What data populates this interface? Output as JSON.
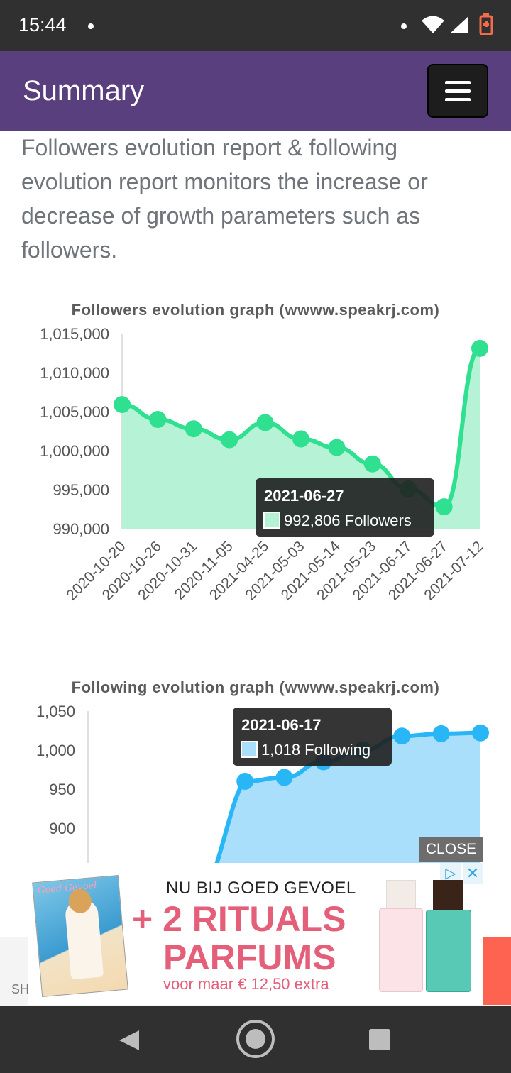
{
  "status_bar": {
    "time": "15:44"
  },
  "app_bar": {
    "title": "Summary"
  },
  "intro_text": "Followers evolution report & following evolution report monitors the increase or decrease of growth parameters such as followers.",
  "followers_chart": {
    "title": "Followers evolution graph (wwww.speakrj.com)",
    "tooltip": {
      "date": "2021-06-27",
      "value": "992,806 Followers"
    }
  },
  "following_chart": {
    "title": "Following evolution graph (wwww.speakrj.com)",
    "tooltip": {
      "date": "2021-06-17",
      "value": "1,018 Following"
    }
  },
  "chart_data": [
    {
      "type": "area",
      "title": "Followers evolution graph (wwww.speakrj.com)",
      "categories": [
        "2020-10-20",
        "2020-10-26",
        "2020-10-31",
        "2020-11-05",
        "2021-04-25",
        "2021-05-03",
        "2021-05-14",
        "2021-05-23",
        "2021-06-17",
        "2021-06-27",
        "2021-07-12"
      ],
      "series": [
        {
          "name": "Followers",
          "values": [
            1005900,
            1004000,
            1002800,
            1001400,
            1003600,
            1001500,
            1000400,
            998300,
            995100,
            992806,
            1013100
          ]
        }
      ],
      "yticks": [
        "990,000",
        "995,000",
        "1,000,000",
        "1,005,000",
        "1,010,000",
        "1,015,000"
      ],
      "ylim": [
        990000,
        1015000
      ],
      "color": "#2ee08f",
      "fill": "#b5f2d6"
    },
    {
      "type": "area",
      "title": "Following evolution graph (wwww.speakrj.com)",
      "series": [
        {
          "name": "Following",
          "values": [
            null,
            null,
            null,
            null,
            960,
            965,
            985,
            1000,
            1018,
            1021,
            1022
          ]
        }
      ],
      "yticks": [
        "900",
        "950",
        "1,000",
        "1,050"
      ],
      "ylim": [
        800,
        1050
      ],
      "color": "#28b6f6",
      "fill": "#a9dffa"
    }
  ],
  "ad": {
    "close_label": "CLOSE",
    "line1": "NU BIJ GOED GEVOEL",
    "line2": "+ 2 RITUALS",
    "line3": "PARFUMS",
    "line4": "voor maar € 12,50 extra",
    "magazine_text": "Goed Gevoel",
    "footer_text": "SH"
  }
}
